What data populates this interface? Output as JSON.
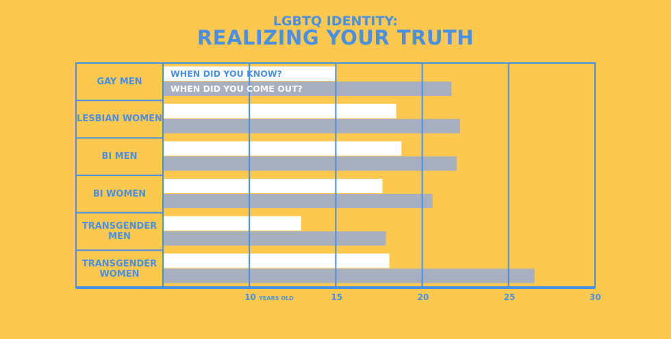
{
  "title_line1": "LGBTQ IDENTITY:",
  "title_line2": "REALIZING YOUR TRUTH",
  "colors": {
    "background": "#FDC84F",
    "accent": "#4A90E2",
    "know": "#FFFFFF",
    "out": "#A8B0BF"
  },
  "chart_data": {
    "type": "bar",
    "orientation": "horizontal",
    "categories": [
      "GAY MEN",
      "LESBIAN WOMEN",
      "BI MEN",
      "BI WOMEN",
      "TRANSGENDER MEN",
      "TRANSGENDER WOMEN"
    ],
    "series": [
      {
        "name": "WHEN DID YOU KNOW?",
        "values": [
          15.0,
          18.5,
          18.8,
          17.7,
          13.0,
          18.1
        ]
      },
      {
        "name": "WHEN DID YOU COME OUT?",
        "values": [
          21.7,
          22.2,
          22.0,
          20.6,
          17.9,
          26.5
        ]
      }
    ],
    "xlim": [
      5,
      30
    ],
    "ticks": [
      {
        "value": 10,
        "label": "10",
        "unit": "YEARS OLD"
      },
      {
        "value": 15,
        "label": "15"
      },
      {
        "value": 20,
        "label": "20"
      },
      {
        "value": 25,
        "label": "25"
      },
      {
        "value": 30,
        "label": "30"
      }
    ],
    "grid": true,
    "legend": "inside first row"
  }
}
